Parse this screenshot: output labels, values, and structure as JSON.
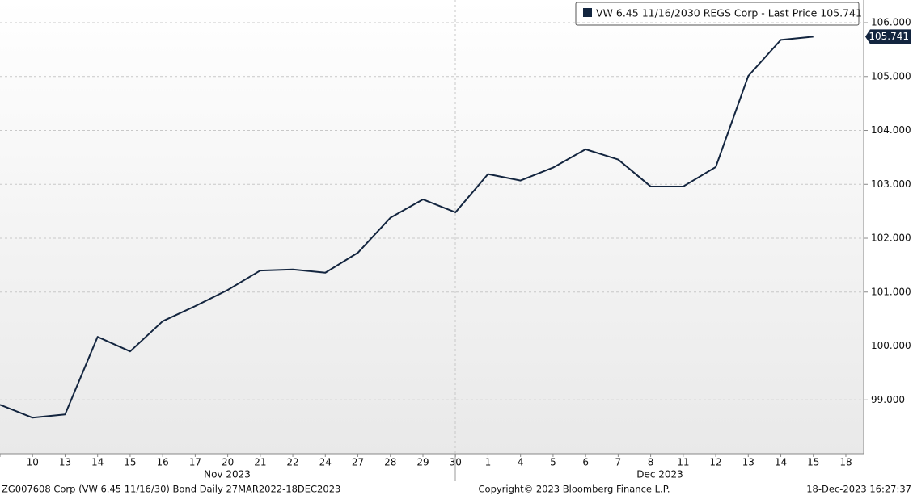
{
  "chart_data": {
    "type": "line",
    "categories": [
      null,
      "10",
      "13",
      "14",
      "15",
      "16",
      "17",
      "20",
      "21",
      "22",
      "24",
      "27",
      "28",
      "29",
      "30",
      "1",
      "4",
      "5",
      "6",
      "7",
      "8",
      "11",
      "12",
      "13",
      "14",
      "15",
      "18"
    ],
    "series": [
      {
        "name": "VW 6.45 11/16/2030 REGS Corp - Last Price 105.741",
        "color": "#13253f",
        "values": [
          98.91,
          98.67,
          98.73,
          100.17,
          99.9,
          100.46,
          100.74,
          101.04,
          101.4,
          101.42,
          101.36,
          101.73,
          102.38,
          102.72,
          102.48,
          103.19,
          103.07,
          103.31,
          103.65,
          103.46,
          102.96,
          102.96,
          103.32,
          105.01,
          105.68,
          105.741,
          null
        ]
      }
    ],
    "ylim": [
      98,
      106.42
    ],
    "yticks": [
      {
        "value": 99,
        "label": "99.000"
      },
      {
        "value": 100,
        "label": "100.000"
      },
      {
        "value": 101,
        "label": "101.000"
      },
      {
        "value": 102,
        "label": "102.000"
      },
      {
        "value": 103,
        "label": "103.000"
      },
      {
        "value": 104,
        "label": "104.000"
      },
      {
        "value": 105,
        "label": "105.000"
      },
      {
        "value": 106,
        "label": "106.000"
      }
    ],
    "grid": true,
    "month_labels": [
      "Nov 2023",
      "Dec 2023"
    ],
    "footer": {
      "left": "ZG007608 Corp (VW 6.45 11/16/30) Bond  Daily 27MAR2022-18DEC2023",
      "center": "Copyright© 2023 Bloomberg Finance L.P.",
      "right": "18-Dec-2023 16:27:37"
    }
  }
}
